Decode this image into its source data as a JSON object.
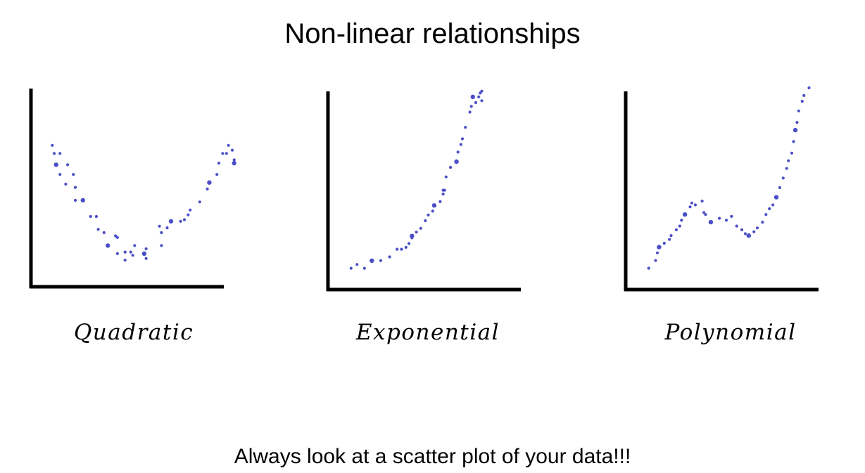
{
  "title": "Non-linear relationships",
  "footer": "Always look at a scatter plot of your data!!!",
  "colors": {
    "points": "#4b4fc7",
    "axes": "#000000"
  },
  "chart_data": [
    {
      "type": "scatter",
      "label": "Quadratic",
      "xlim": [
        0,
        100
      ],
      "ylim": [
        0,
        100
      ],
      "points": [
        [
          6,
          84
        ],
        [
          7,
          79
        ],
        [
          10,
          79
        ],
        [
          8,
          72
        ],
        [
          14,
          72
        ],
        [
          10,
          66
        ],
        [
          17,
          66
        ],
        [
          13,
          60
        ],
        [
          18,
          58
        ],
        [
          18,
          50
        ],
        [
          22,
          50
        ],
        [
          26,
          40
        ],
        [
          29,
          40
        ],
        [
          30,
          32
        ],
        [
          33,
          30
        ],
        [
          39,
          28
        ],
        [
          40,
          27
        ],
        [
          35,
          22
        ],
        [
          49,
          22
        ],
        [
          40,
          17
        ],
        [
          44,
          18
        ],
        [
          44,
          13
        ],
        [
          47,
          18
        ],
        [
          48,
          16
        ],
        [
          54,
          17
        ],
        [
          55,
          14
        ],
        [
          55,
          20
        ],
        [
          63,
          22
        ],
        [
          62,
          34
        ],
        [
          63,
          30
        ],
        [
          66,
          33
        ],
        [
          68,
          37
        ],
        [
          73,
          37
        ],
        [
          75,
          38
        ],
        [
          77,
          41
        ],
        [
          78,
          44
        ],
        [
          83,
          49
        ],
        [
          87,
          57
        ],
        [
          88,
          61
        ],
        [
          92,
          66
        ],
        [
          93,
          73
        ],
        [
          95,
          79
        ],
        [
          97,
          79
        ],
        [
          98,
          84
        ],
        [
          100,
          81
        ],
        [
          101,
          73
        ],
        [
          101,
          75
        ]
      ]
    },
    {
      "type": "scatter",
      "label": "Exponential",
      "xlim": [
        0,
        100
      ],
      "ylim": [
        0,
        100
      ],
      "points": [
        [
          7,
          6
        ],
        [
          11,
          8
        ],
        [
          16,
          6
        ],
        [
          21,
          10
        ],
        [
          27,
          10
        ],
        [
          33,
          12
        ],
        [
          38,
          16
        ],
        [
          41,
          16
        ],
        [
          44,
          17
        ],
        [
          46,
          19
        ],
        [
          48,
          23
        ],
        [
          48,
          22
        ],
        [
          51,
          25
        ],
        [
          54,
          27
        ],
        [
          57,
          31
        ],
        [
          59,
          34
        ],
        [
          62,
          36
        ],
        [
          63,
          39
        ],
        [
          67,
          41
        ],
        [
          69,
          45
        ],
        [
          69,
          47
        ],
        [
          70,
          47
        ],
        [
          71,
          54
        ],
        [
          74,
          59
        ],
        [
          78,
          62
        ],
        [
          79,
          67
        ],
        [
          81,
          71
        ],
        [
          82,
          74
        ],
        [
          84,
          80
        ],
        [
          87,
          88
        ],
        [
          88,
          91
        ],
        [
          89,
          96
        ],
        [
          91,
          93
        ],
        [
          93,
          96
        ],
        [
          94,
          98
        ],
        [
          95,
          94
        ],
        [
          95,
          99
        ]
      ]
    },
    {
      "type": "scatter",
      "label": "Polynomial",
      "xlim": [
        0,
        100
      ],
      "ylim": [
        0,
        100
      ],
      "points": [
        [
          6,
          6
        ],
        [
          10,
          10
        ],
        [
          11,
          14
        ],
        [
          12,
          17
        ],
        [
          15,
          19
        ],
        [
          18,
          21
        ],
        [
          19,
          23
        ],
        [
          22,
          26
        ],
        [
          24,
          28
        ],
        [
          25,
          31
        ],
        [
          27,
          34
        ],
        [
          30,
          38
        ],
        [
          31,
          40
        ],
        [
          33,
          39
        ],
        [
          37,
          41
        ],
        [
          38,
          35
        ],
        [
          39,
          34
        ],
        [
          42,
          30
        ],
        [
          47,
          32
        ],
        [
          51,
          31
        ],
        [
          54,
          33
        ],
        [
          57,
          28
        ],
        [
          60,
          26
        ],
        [
          62,
          24
        ],
        [
          64,
          23
        ],
        [
          67,
          25
        ],
        [
          69,
          27
        ],
        [
          72,
          30
        ],
        [
          74,
          34
        ],
        [
          76,
          37
        ],
        [
          78,
          39
        ],
        [
          80,
          43
        ],
        [
          82,
          48
        ],
        [
          84,
          53
        ],
        [
          86,
          58
        ],
        [
          87,
          62
        ],
        [
          89,
          66
        ],
        [
          90,
          72
        ],
        [
          91,
          78
        ],
        [
          92,
          82
        ],
        [
          93,
          88
        ],
        [
          95,
          93
        ],
        [
          96,
          96
        ],
        [
          99,
          100
        ]
      ]
    }
  ]
}
